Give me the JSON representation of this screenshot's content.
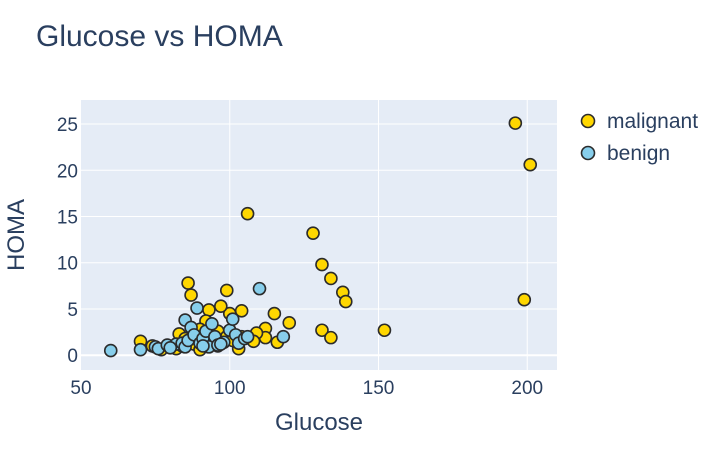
{
  "chart_data": {
    "type": "scatter",
    "title": "Glucose vs HOMA",
    "xlabel": "Glucose",
    "ylabel": "HOMA",
    "xlim": [
      50,
      210
    ],
    "ylim": [
      -1.6,
      27.6
    ],
    "xticks": [
      50,
      100,
      150,
      200
    ],
    "yticks": [
      0,
      5,
      10,
      15,
      20,
      25
    ],
    "grid": true,
    "legend_position": "top-right",
    "series": [
      {
        "name": "malignant",
        "color": "#FFD700",
        "points": [
          [
            196,
            25.1
          ],
          [
            201,
            20.6
          ],
          [
            199,
            6.0
          ],
          [
            106,
            15.3
          ],
          [
            128,
            13.2
          ],
          [
            131,
            9.8
          ],
          [
            134,
            8.3
          ],
          [
            138,
            6.8
          ],
          [
            139,
            5.8
          ],
          [
            152,
            2.7
          ],
          [
            131,
            2.7
          ],
          [
            134,
            1.9
          ],
          [
            120,
            3.5
          ],
          [
            115,
            4.5
          ],
          [
            112,
            2.9
          ],
          [
            112,
            1.9
          ],
          [
            116,
            1.4
          ],
          [
            109,
            2.4
          ],
          [
            104,
            4.8
          ],
          [
            104,
            2.0
          ],
          [
            103,
            0.7
          ],
          [
            99,
            7.0
          ],
          [
            100,
            4.5
          ],
          [
            97,
            5.3
          ],
          [
            93,
            4.9
          ],
          [
            92,
            3.7
          ],
          [
            94,
            3.1
          ],
          [
            96,
            2.6
          ],
          [
            99,
            2.0
          ],
          [
            86,
            7.8
          ],
          [
            87,
            6.5
          ],
          [
            83,
            2.3
          ],
          [
            85,
            1.8
          ],
          [
            88,
            1.2
          ],
          [
            90,
            2.8
          ],
          [
            80,
            0.9
          ],
          [
            82,
            0.7
          ],
          [
            77,
            0.6
          ],
          [
            70,
            1.5
          ],
          [
            74,
            1.0
          ],
          [
            84,
            1.0
          ],
          [
            90,
            0.6
          ],
          [
            92,
            1.1
          ],
          [
            96,
            1.0
          ],
          [
            101,
            1.6
          ],
          [
            108,
            1.5
          ]
        ]
      },
      {
        "name": "benign",
        "color": "#87CEEB",
        "points": [
          [
            60,
            0.5
          ],
          [
            70,
            0.6
          ],
          [
            75,
            0.9
          ],
          [
            76,
            0.7
          ],
          [
            79,
            1.1
          ],
          [
            82,
            1.2
          ],
          [
            84,
            1.3
          ],
          [
            85,
            0.9
          ],
          [
            85,
            3.8
          ],
          [
            86,
            1.6
          ],
          [
            87,
            3.0
          ],
          [
            88,
            2.2
          ],
          [
            89,
            5.1
          ],
          [
            90,
            1.3
          ],
          [
            91,
            1.8
          ],
          [
            92,
            2.6
          ],
          [
            93,
            0.9
          ],
          [
            94,
            3.4
          ],
          [
            95,
            2.0
          ],
          [
            96,
            1.1
          ],
          [
            98,
            1.4
          ],
          [
            100,
            2.7
          ],
          [
            101,
            3.9
          ],
          [
            102,
            2.2
          ],
          [
            103,
            1.3
          ],
          [
            105,
            1.8
          ],
          [
            106,
            2.0
          ],
          [
            110,
            7.2
          ],
          [
            118,
            2.0
          ],
          [
            80,
            0.8
          ],
          [
            91,
            1.0
          ],
          [
            97,
            1.2
          ]
        ]
      }
    ]
  }
}
